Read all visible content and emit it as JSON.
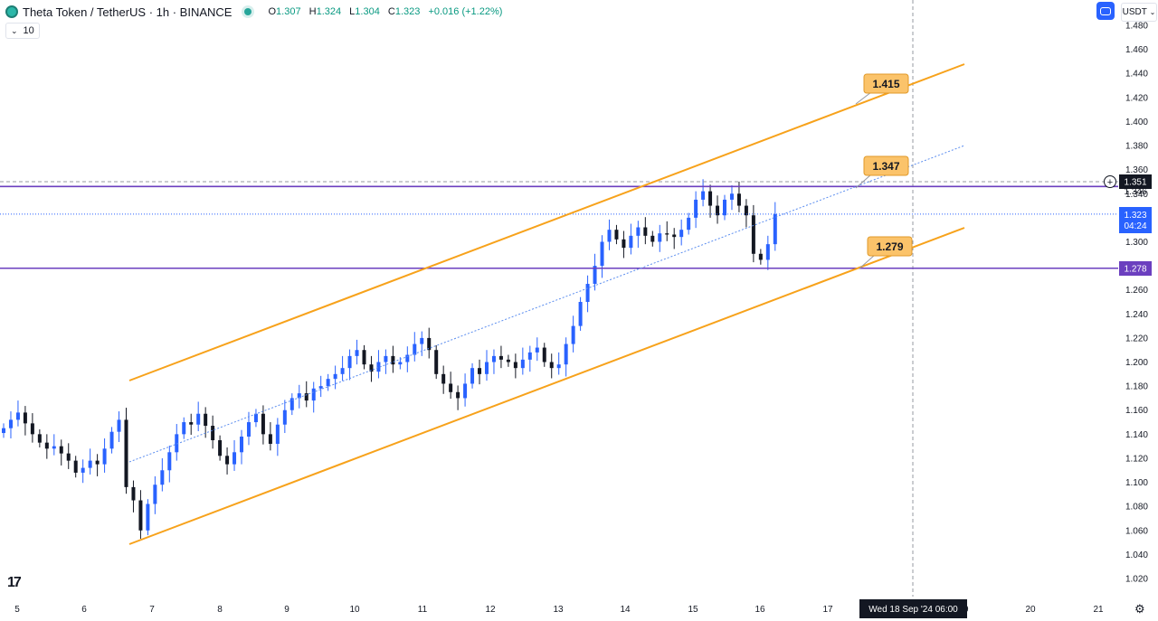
{
  "header": {
    "title": "Theta Token / TetherUS · 1h · BINANCE",
    "o_label": "O",
    "o_value": "1.307",
    "h_label": "H",
    "h_value": "1.324",
    "l_label": "L",
    "l_value": "1.304",
    "c_label": "C",
    "c_value": "1.323",
    "change": "+0.016 (+1.22%)"
  },
  "volume_box": {
    "value": "10"
  },
  "currency_button": {
    "label": "USDT"
  },
  "icons": {
    "logo": "theta-logo-icon",
    "live": "live-dot-icon",
    "layout": "layout-toggle-icon",
    "settings": "gear-icon",
    "brand": "tradingview-logo-icon"
  },
  "colors": {
    "up": "#2962ff",
    "down": "#131722",
    "channel": "#f7a21b",
    "level": "#6b3fbf",
    "midline": "#5b8def",
    "tag_bg": "#fbc36a",
    "current_price_bg": "#2962ff"
  },
  "chart_data": {
    "type": "candlestick",
    "symbol": "Theta Token / TetherUS",
    "interval": "1h",
    "exchange": "BINANCE",
    "ylim": [
      1.012,
      1.486
    ],
    "y_ticks": [
      "1.020",
      "1.040",
      "1.060",
      "1.080",
      "1.100",
      "1.120",
      "1.140",
      "1.160",
      "1.180",
      "1.200",
      "1.220",
      "1.240",
      "1.260",
      "1.280",
      "1.300",
      "1.320",
      "1.340",
      "1.360",
      "1.380",
      "1.400",
      "1.420",
      "1.440",
      "1.460",
      "1.480"
    ],
    "x_ticks": [
      "5",
      "6",
      "7",
      "8",
      "9",
      "10",
      "11",
      "12",
      "13",
      "14",
      "15",
      "16",
      "17",
      "18",
      "19",
      "20",
      "21"
    ],
    "crosshair_time_label": "Wed 18 Sep '24   06:00",
    "closes": [
      1.145,
      1.152,
      1.158,
      1.149,
      1.14,
      1.133,
      1.128,
      1.13,
      1.124,
      1.118,
      1.108,
      1.112,
      1.118,
      1.115,
      1.128,
      1.142,
      1.152,
      1.096,
      1.085,
      1.06,
      1.082,
      1.098,
      1.11,
      1.125,
      1.14,
      1.15,
      1.148,
      1.157,
      1.147,
      1.135,
      1.122,
      1.115,
      1.125,
      1.138,
      1.15,
      1.157,
      1.14,
      1.132,
      1.148,
      1.16,
      1.17,
      1.174,
      1.168,
      1.178,
      1.18,
      1.186,
      1.19,
      1.195,
      1.205,
      1.21,
      1.198,
      1.192,
      1.2,
      1.205,
      1.198,
      1.2,
      1.206,
      1.215,
      1.22,
      1.21,
      1.19,
      1.182,
      1.175,
      1.17,
      1.182,
      1.195,
      1.19,
      1.2,
      1.205,
      1.202,
      1.2,
      1.195,
      1.202,
      1.208,
      1.212,
      1.2,
      1.195,
      1.198,
      1.215,
      1.23,
      1.25,
      1.265,
      1.28,
      1.3,
      1.31,
      1.302,
      1.295,
      1.305,
      1.312,
      1.305,
      1.3,
      1.307,
      1.306,
      1.304,
      1.31,
      1.32,
      1.335,
      1.342,
      1.33,
      1.322,
      1.335,
      1.34,
      1.33,
      1.322,
      1.29,
      1.285,
      1.298,
      1.323
    ],
    "levels": [
      {
        "name": "upper-level",
        "value": 1.346
      },
      {
        "name": "lower-level",
        "value": 1.278
      }
    ],
    "channel_targets": [
      "1.415",
      "1.347",
      "1.279"
    ],
    "price_labels": {
      "dashed_level": "1.351",
      "upper_level": "1.346",
      "current": "1.323",
      "countdown": "04:24",
      "lower_level": "1.278"
    }
  }
}
